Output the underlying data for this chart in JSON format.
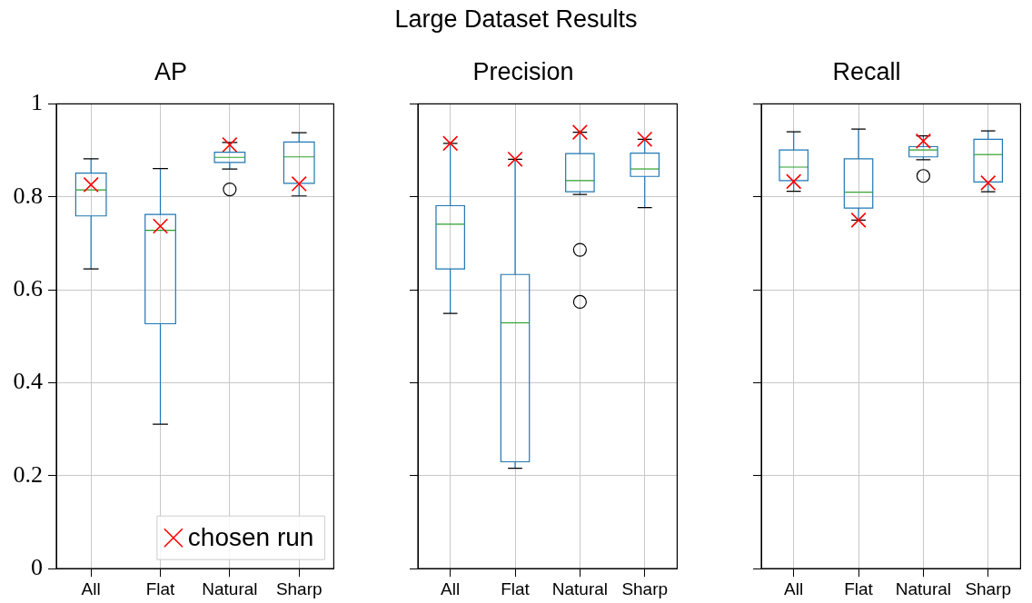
{
  "chart_data": [
    {
      "type": "box",
      "title": "AP",
      "annotations": [
        "Large Dataset Results"
      ],
      "categories": [
        "All",
        "Flat",
        "Natural",
        "Sharp"
      ],
      "ylim": [
        0,
        1
      ],
      "yticks": [
        0,
        0.2,
        0.4,
        0.6,
        0.8,
        1
      ],
      "grid": true,
      "legend": "bottom right",
      "series": [
        {
          "type": "box",
          "color": "#1f77b4",
          "boxes": [
            {
              "low": 0.645,
              "q1": 0.759,
              "median": 0.815,
              "q3": 0.851,
              "high": 0.882
            },
            {
              "low": 0.311,
              "q1": 0.527,
              "median": 0.728,
              "q3": 0.762,
              "high": 0.861
            },
            {
              "low": 0.86,
              "q1": 0.874,
              "median": 0.885,
              "q3": 0.896,
              "high": 0.917,
              "outliers": [
                0.816
              ]
            },
            {
              "low": 0.802,
              "q1": 0.829,
              "median": 0.886,
              "q3": 0.918,
              "high": 0.938
            }
          ]
        },
        {
          "type": "scatter",
          "name": "chosen run",
          "color": "#ff0000",
          "marker": "cross",
          "x": [
            "All",
            "Flat",
            "Natural",
            "Sharp"
          ],
          "values": [
            0.826,
            0.737,
            0.912,
            0.828
          ]
        }
      ]
    },
    {
      "type": "box",
      "title": "Precision",
      "categories": [
        "All",
        "Flat",
        "Natural",
        "Sharp"
      ],
      "ylim": [
        0,
        1
      ],
      "yticks": [
        0,
        0.2,
        0.4,
        0.6,
        0.8,
        1
      ],
      "grid": true,
      "tick_labels": "x",
      "series": [
        {
          "type": "box",
          "color": "#1f77b4",
          "boxes": [
            {
              "low": 0.549,
              "q1": 0.645,
              "median": 0.741,
              "q3": 0.781,
              "high": 0.915
            },
            {
              "low": 0.216,
              "q1": 0.23,
              "median": 0.529,
              "q3": 0.633,
              "high": 0.881
            },
            {
              "low": 0.805,
              "q1": 0.811,
              "median": 0.835,
              "q3": 0.893,
              "high": 0.939,
              "outliers": [
                0.686,
                0.574
              ]
            },
            {
              "low": 0.777,
              "q1": 0.844,
              "median": 0.86,
              "q3": 0.894,
              "high": 0.924
            }
          ]
        },
        {
          "type": "scatter",
          "color": "#ff0000",
          "marker": "cross",
          "x": [
            "All",
            "Flat",
            "Natural",
            "Sharp"
          ],
          "values": [
            0.915,
            0.881,
            0.939,
            0.924
          ]
        }
      ]
    },
    {
      "type": "box",
      "title": "Recall",
      "categories": [
        "All",
        "Flat",
        "Natural",
        "Sharp"
      ],
      "ylim": [
        0,
        1
      ],
      "yticks": [
        0,
        0.2,
        0.4,
        0.6,
        0.8,
        1
      ],
      "grid": true,
      "tick_labels": "x",
      "series": [
        {
          "type": "box",
          "color": "#1f77b4",
          "boxes": [
            {
              "low": 0.812,
              "q1": 0.835,
              "median": 0.864,
              "q3": 0.901,
              "high": 0.94
            },
            {
              "low": 0.75,
              "q1": 0.776,
              "median": 0.81,
              "q3": 0.882,
              "high": 0.946
            },
            {
              "low": 0.88,
              "q1": 0.886,
              "median": 0.901,
              "q3": 0.908,
              "high": 0.931,
              "outliers": [
                0.845
              ]
            },
            {
              "low": 0.811,
              "q1": 0.832,
              "median": 0.891,
              "q3": 0.924,
              "high": 0.942
            }
          ]
        },
        {
          "type": "scatter",
          "color": "#ff0000",
          "marker": "cross",
          "x": [
            "All",
            "Flat",
            "Natural",
            "Sharp"
          ],
          "values": [
            0.833,
            0.75,
            0.92,
            0.83
          ]
        }
      ]
    }
  ]
}
